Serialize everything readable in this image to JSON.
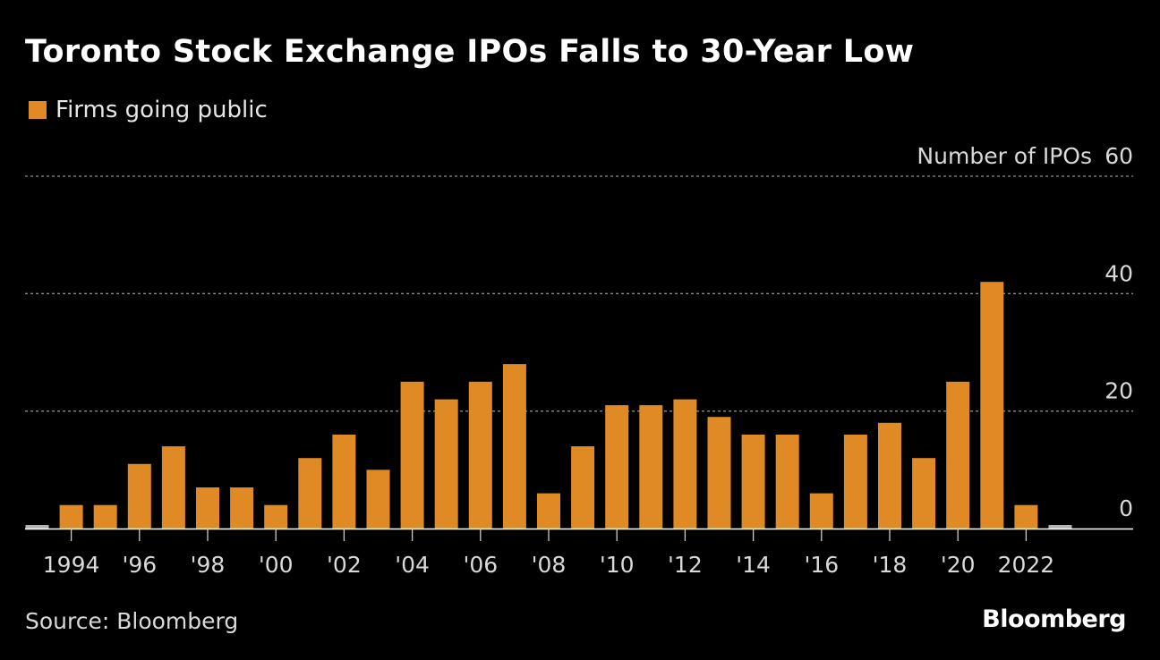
{
  "title": "Toronto Stock Exchange IPOs Falls to 30-Year Low",
  "legend": {
    "label": "Firms going public",
    "color": "#e08a26"
  },
  "source": "Source: Bloomberg",
  "brand": "Bloomberg",
  "colors": {
    "bar": "#e08a26",
    "bar_partial": "#b3b3b3",
    "grid": "#8a8a8a",
    "axis": "#cccccc",
    "text": "#d9d9d9"
  },
  "chart_data": {
    "type": "bar",
    "title": "Toronto Stock Exchange IPOs Falls to 30-Year Low",
    "ylabel": "Number of IPOs",
    "ylim": [
      0,
      60
    ],
    "yticks": [
      0,
      20,
      40,
      60
    ],
    "categories": [
      "1993",
      "1994",
      "1995",
      "1996",
      "1997",
      "1998",
      "1999",
      "2000",
      "2001",
      "2002",
      "2003",
      "2004",
      "2005",
      "2006",
      "2007",
      "2008",
      "2009",
      "2010",
      "2011",
      "2012",
      "2013",
      "2014",
      "2015",
      "2016",
      "2017",
      "2018",
      "2019",
      "2020",
      "2021",
      "2022",
      "2023"
    ],
    "values": [
      1,
      4,
      4,
      11,
      14,
      7,
      7,
      4,
      12,
      16,
      10,
      25,
      22,
      25,
      28,
      6,
      14,
      21,
      21,
      22,
      19,
      16,
      16,
      6,
      16,
      18,
      12,
      25,
      42,
      4,
      1
    ],
    "partial": [
      true,
      false,
      false,
      false,
      false,
      false,
      false,
      false,
      false,
      false,
      false,
      false,
      false,
      false,
      false,
      false,
      false,
      false,
      false,
      false,
      false,
      false,
      false,
      false,
      false,
      false,
      false,
      false,
      false,
      false,
      true
    ],
    "xticks": [
      {
        "category": "1994",
        "label": "1994"
      },
      {
        "category": "1996",
        "label": "'96"
      },
      {
        "category": "1998",
        "label": "'98"
      },
      {
        "category": "2000",
        "label": "'00"
      },
      {
        "category": "2002",
        "label": "'02"
      },
      {
        "category": "2004",
        "label": "'04"
      },
      {
        "category": "2006",
        "label": "'06"
      },
      {
        "category": "2008",
        "label": "'08"
      },
      {
        "category": "2010",
        "label": "'10"
      },
      {
        "category": "2012",
        "label": "'12"
      },
      {
        "category": "2014",
        "label": "'14"
      },
      {
        "category": "2016",
        "label": "'16"
      },
      {
        "category": "2018",
        "label": "'18"
      },
      {
        "category": "2020",
        "label": "'20"
      },
      {
        "category": "2022",
        "label": "2022"
      }
    ],
    "legend": [
      "Firms going public"
    ]
  }
}
